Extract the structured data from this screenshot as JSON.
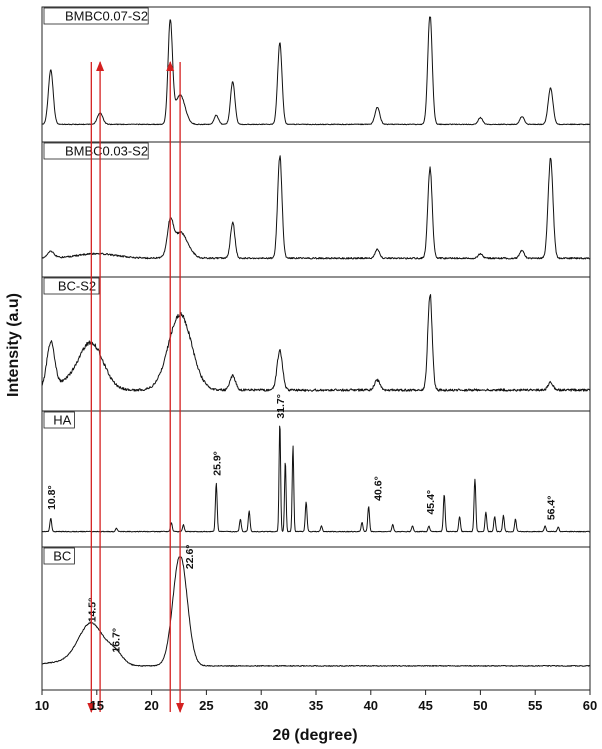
{
  "chart_data": {
    "type": "line",
    "xlabel": "2θ (degree)",
    "ylabel": "Intensity (a.u)",
    "xlim": [
      10,
      60
    ],
    "ylim": [
      0,
      1
    ],
    "xticks": [
      10,
      15,
      20,
      25,
      30,
      35,
      40,
      45,
      50,
      55,
      60
    ],
    "grid": false,
    "series": [
      {
        "name": "BMBC0.07-S2",
        "baseline": 0.05,
        "peaks": [
          {
            "x": 10.8,
            "h": 0.48,
            "w": 0.22
          },
          {
            "x": 15.3,
            "h": 0.1,
            "w": 0.25
          },
          {
            "x": 21.7,
            "h": 0.9,
            "w": 0.2
          },
          {
            "x": 22.6,
            "h": 0.26,
            "w": 0.45
          },
          {
            "x": 25.9,
            "h": 0.08,
            "w": 0.2
          },
          {
            "x": 27.4,
            "h": 0.38,
            "w": 0.2
          },
          {
            "x": 31.7,
            "h": 0.72,
            "w": 0.2
          },
          {
            "x": 40.6,
            "h": 0.15,
            "w": 0.22
          },
          {
            "x": 45.4,
            "h": 0.98,
            "w": 0.2
          },
          {
            "x": 50.0,
            "h": 0.06,
            "w": 0.2
          },
          {
            "x": 53.8,
            "h": 0.07,
            "w": 0.2
          },
          {
            "x": 56.4,
            "h": 0.32,
            "w": 0.22
          }
        ],
        "humps": []
      },
      {
        "name": "BMBC0.03-S2",
        "baseline": 0.06,
        "peaks": [
          {
            "x": 10.8,
            "h": 0.06,
            "w": 0.3
          },
          {
            "x": 21.7,
            "h": 0.26,
            "w": 0.25
          },
          {
            "x": 22.6,
            "h": 0.23,
            "w": 0.7
          },
          {
            "x": 27.4,
            "h": 0.32,
            "w": 0.2
          },
          {
            "x": 31.7,
            "h": 0.9,
            "w": 0.2
          },
          {
            "x": 40.6,
            "h": 0.08,
            "w": 0.2
          },
          {
            "x": 45.4,
            "h": 0.8,
            "w": 0.2
          },
          {
            "x": 50.0,
            "h": 0.04,
            "w": 0.2
          },
          {
            "x": 53.8,
            "h": 0.07,
            "w": 0.2
          },
          {
            "x": 56.4,
            "h": 0.88,
            "w": 0.22
          }
        ],
        "humps": [
          {
            "x": 15.0,
            "h": 0.04,
            "w": 1.8
          }
        ]
      },
      {
        "name": "BC-S2",
        "baseline": 0.08,
        "peaks": [
          {
            "x": 10.8,
            "h": 0.4,
            "w": 0.35
          },
          {
            "x": 27.4,
            "h": 0.13,
            "w": 0.25
          },
          {
            "x": 31.7,
            "h": 0.35,
            "w": 0.25
          },
          {
            "x": 40.6,
            "h": 0.09,
            "w": 0.25
          },
          {
            "x": 45.4,
            "h": 0.86,
            "w": 0.2
          },
          {
            "x": 56.4,
            "h": 0.07,
            "w": 0.22
          }
        ],
        "humps": [
          {
            "x": 14.5,
            "h": 0.4,
            "w": 1.1
          },
          {
            "x": 22.6,
            "h": 0.68,
            "w": 1.05
          },
          {
            "x": 12.5,
            "h": 0.06,
            "w": 1.5
          }
        ]
      },
      {
        "name": "HA",
        "baseline": 0.03,
        "peaks": [
          {
            "x": 10.8,
            "h": 0.12,
            "w": 0.08
          },
          {
            "x": 16.8,
            "h": 0.03,
            "w": 0.08
          },
          {
            "x": 21.8,
            "h": 0.08,
            "w": 0.08
          },
          {
            "x": 22.9,
            "h": 0.06,
            "w": 0.08
          },
          {
            "x": 25.9,
            "h": 0.42,
            "w": 0.08
          },
          {
            "x": 28.1,
            "h": 0.11,
            "w": 0.08
          },
          {
            "x": 28.9,
            "h": 0.18,
            "w": 0.08
          },
          {
            "x": 31.7,
            "h": 0.96,
            "w": 0.07
          },
          {
            "x": 32.2,
            "h": 0.62,
            "w": 0.07
          },
          {
            "x": 32.9,
            "h": 0.75,
            "w": 0.07
          },
          {
            "x": 34.1,
            "h": 0.26,
            "w": 0.08
          },
          {
            "x": 35.5,
            "h": 0.05,
            "w": 0.08
          },
          {
            "x": 39.2,
            "h": 0.08,
            "w": 0.08
          },
          {
            "x": 39.8,
            "h": 0.22,
            "w": 0.08
          },
          {
            "x": 42.0,
            "h": 0.06,
            "w": 0.08
          },
          {
            "x": 43.8,
            "h": 0.05,
            "w": 0.08
          },
          {
            "x": 45.3,
            "h": 0.05,
            "w": 0.08
          },
          {
            "x": 46.7,
            "h": 0.33,
            "w": 0.08
          },
          {
            "x": 48.1,
            "h": 0.13,
            "w": 0.08
          },
          {
            "x": 49.5,
            "h": 0.46,
            "w": 0.08
          },
          {
            "x": 50.5,
            "h": 0.17,
            "w": 0.08
          },
          {
            "x": 51.3,
            "h": 0.13,
            "w": 0.08
          },
          {
            "x": 52.1,
            "h": 0.14,
            "w": 0.08
          },
          {
            "x": 53.2,
            "h": 0.11,
            "w": 0.08
          },
          {
            "x": 55.9,
            "h": 0.05,
            "w": 0.08
          },
          {
            "x": 57.1,
            "h": 0.04,
            "w": 0.08
          }
        ],
        "humps": []
      },
      {
        "name": "BC",
        "baseline": 0.1,
        "peaks": [],
        "humps": [
          {
            "x": 14.5,
            "h": 0.34,
            "w": 1.15
          },
          {
            "x": 16.7,
            "h": 0.09,
            "w": 0.7
          },
          {
            "x": 22.6,
            "h": 0.92,
            "w": 0.65
          },
          {
            "x": 12.0,
            "h": 0.03,
            "w": 2.0
          }
        ]
      }
    ],
    "annotations": [
      {
        "panel": 3,
        "x": 10.8,
        "y": 0.22,
        "text": "10.8°"
      },
      {
        "panel": 3,
        "x": 25.9,
        "y": 0.52,
        "text": "25.9°"
      },
      {
        "panel": 3,
        "x": 31.7,
        "y": 1.02,
        "text": "31.7°"
      },
      {
        "panel": 3,
        "x": 40.6,
        "y": 0.3,
        "text": "40.6°"
      },
      {
        "panel": 3,
        "x": 45.4,
        "y": 0.18,
        "text": "45.4°"
      },
      {
        "panel": 3,
        "x": 56.4,
        "y": 0.13,
        "text": "56.4°"
      },
      {
        "panel": 4,
        "x": 14.5,
        "y": 0.46,
        "text": "14.5°"
      },
      {
        "panel": 4,
        "x": 16.7,
        "y": 0.21,
        "text": "16.7°"
      },
      {
        "panel": 4,
        "x": 23.4,
        "y": 0.9,
        "text": "22.6°"
      }
    ],
    "markers": [
      {
        "x": 14.5,
        "direction": "down"
      },
      {
        "x": 15.3,
        "direction": "up"
      },
      {
        "x": 21.7,
        "direction": "up"
      },
      {
        "x": 22.6,
        "direction": "down"
      }
    ]
  }
}
